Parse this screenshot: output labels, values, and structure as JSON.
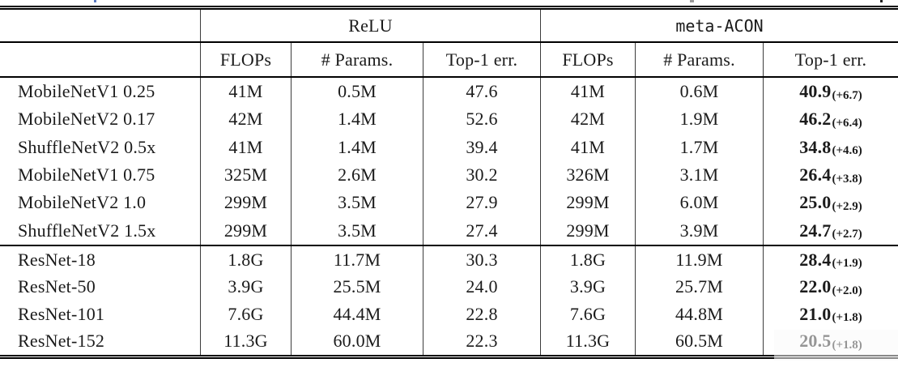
{
  "page": {
    "background": "#ffffff",
    "text_color": "#1b1b1b",
    "rule_color": "#000000",
    "separator_color": "#3c3c3c"
  },
  "caption_fragments": [
    {
      "color": "#5b79c0"
    },
    {
      "color": "#9a9a9a"
    },
    {
      "color": "#222222"
    }
  ],
  "table": {
    "group_headers": {
      "relu": "ReLU",
      "meta_acon": "meta-ACON"
    },
    "column_headers": {
      "relu_flops": "FLOPs",
      "relu_params": "# Params.",
      "relu_err": "Top-1 err.",
      "acon_flops": "FLOPs",
      "acon_params": "# Params.",
      "acon_err": "Top-1 err."
    },
    "sections": [
      {
        "rows": [
          {
            "model": "MobileNetV1 0.25",
            "relu_flops": "41M",
            "relu_params": "0.5M",
            "relu_err": "47.6",
            "acon_flops": "41M",
            "acon_params": "0.6M",
            "acon_err": "40.9",
            "acon_delta": "(+6.7)"
          },
          {
            "model": "MobileNetV2 0.17",
            "relu_flops": "42M",
            "relu_params": "1.4M",
            "relu_err": "52.6",
            "acon_flops": "42M",
            "acon_params": "1.9M",
            "acon_err": "46.2",
            "acon_delta": "(+6.4)"
          },
          {
            "model": "ShuffleNetV2 0.5x",
            "relu_flops": "41M",
            "relu_params": "1.4M",
            "relu_err": "39.4",
            "acon_flops": "41M",
            "acon_params": "1.7M",
            "acon_err": "34.8",
            "acon_delta": "(+4.6)"
          },
          {
            "model": "MobileNetV1 0.75",
            "relu_flops": "325M",
            "relu_params": "2.6M",
            "relu_err": "30.2",
            "acon_flops": "326M",
            "acon_params": "3.1M",
            "acon_err": "26.4",
            "acon_delta": "(+3.8)"
          },
          {
            "model": "MobileNetV2 1.0",
            "relu_flops": "299M",
            "relu_params": "3.5M",
            "relu_err": "27.9",
            "acon_flops": "299M",
            "acon_params": "6.0M",
            "acon_err": "25.0",
            "acon_delta": "(+2.9)"
          },
          {
            "model": "ShuffleNetV2 1.5x",
            "relu_flops": "299M",
            "relu_params": "3.5M",
            "relu_err": "27.4",
            "acon_flops": "299M",
            "acon_params": "3.9M",
            "acon_err": "24.7",
            "acon_delta": "(+2.7)"
          }
        ]
      },
      {
        "rows": [
          {
            "model": "ResNet-18",
            "relu_flops": "1.8G",
            "relu_params": "11.7M",
            "relu_err": "30.3",
            "acon_flops": "1.8G",
            "acon_params": "11.9M",
            "acon_err": "28.4",
            "acon_delta": "(+1.9)"
          },
          {
            "model": "ResNet-50",
            "relu_flops": "3.9G",
            "relu_params": "25.5M",
            "relu_err": "24.0",
            "acon_flops": "3.9G",
            "acon_params": "25.7M",
            "acon_err": "22.0",
            "acon_delta": "(+2.0)"
          },
          {
            "model": "ResNet-101",
            "relu_flops": "7.6G",
            "relu_params": "44.4M",
            "relu_err": "22.8",
            "acon_flops": "7.6G",
            "acon_params": "44.8M",
            "acon_err": "21.0",
            "acon_delta": "(+1.8)"
          },
          {
            "model": "ResNet-152",
            "relu_flops": "11.3G",
            "relu_params": "60.0M",
            "relu_err": "22.3",
            "acon_flops": "11.3G",
            "acon_params": "60.5M",
            "acon_err": "20.5",
            "acon_delta": "(+1.8)"
          }
        ]
      }
    ]
  }
}
